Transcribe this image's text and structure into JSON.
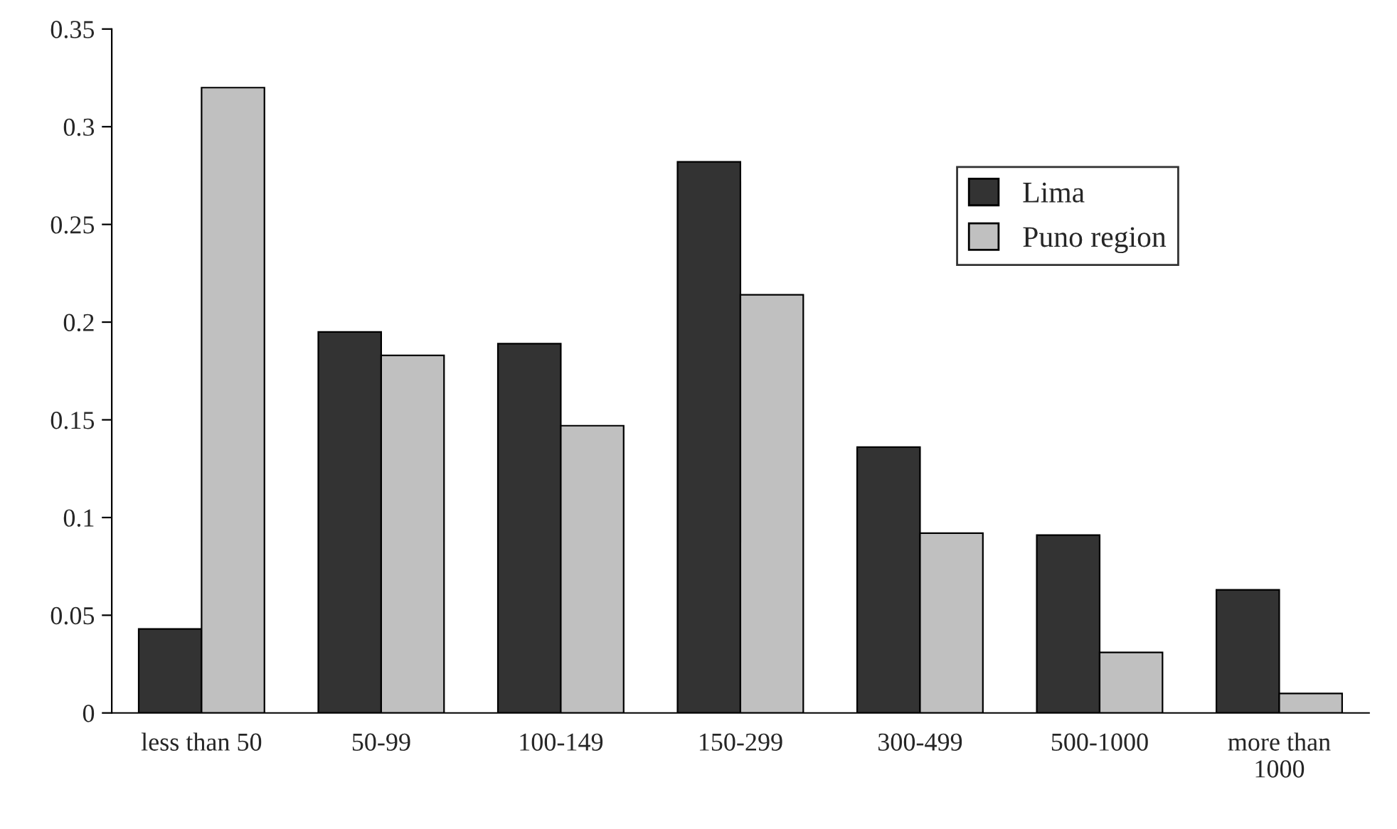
{
  "chart_data": {
    "type": "bar",
    "categories": [
      "less than 50",
      "50-99",
      "100-149",
      "150-299",
      "300-499",
      "500-1000",
      "more than\n1000"
    ],
    "series": [
      {
        "name": "Lima",
        "color": "#333333",
        "values": [
          0.043,
          0.195,
          0.189,
          0.282,
          0.136,
          0.091,
          0.063
        ]
      },
      {
        "name": "Puno region",
        "color": "#c0c0c0",
        "values": [
          0.32,
          0.183,
          0.147,
          0.214,
          0.092,
          0.031,
          0.01
        ]
      }
    ],
    "ylim": [
      0,
      0.35
    ],
    "yticks": [
      {
        "value": 0,
        "label": "0"
      },
      0.05,
      0.1,
      0.15,
      0.2,
      0.25,
      0.3,
      0.35
    ],
    "grid": false,
    "legend": "top right"
  }
}
